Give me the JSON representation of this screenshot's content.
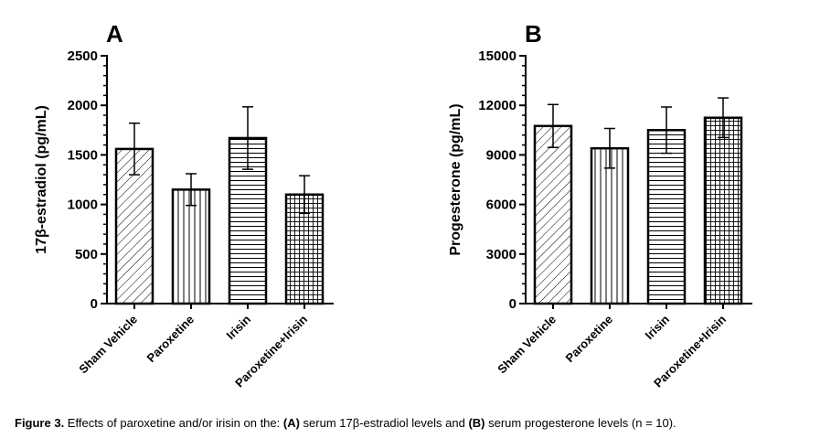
{
  "caption": {
    "figure_label": "Figure 3.",
    "text_1": " Effects of paroxetine and/or irisin on the: ",
    "label_a": "(A)",
    "text_2": " serum 17β-estradiol levels and ",
    "label_b": "(B)",
    "text_3": " serum progesterone levels (n = 10)."
  },
  "chart_data": [
    {
      "type": "bar",
      "panel": "A",
      "title": "",
      "xlabel": "",
      "ylabel": "17β-estradiol (pg/mL)",
      "categories": [
        "Sham Vehicle",
        "Paroxetine",
        "Irisin",
        "Paroxetine+Irisin"
      ],
      "values": [
        1560,
        1150,
        1670,
        1100
      ],
      "errors": [
        260,
        160,
        315,
        190
      ],
      "patterns": [
        "diagonal",
        "vertical",
        "horizontal",
        "grid"
      ],
      "ylim": [
        0,
        2500
      ],
      "yticks": [
        0,
        500,
        1000,
        1500,
        2000,
        2500
      ],
      "minor_per_major": 5,
      "grid": false,
      "legend": "none"
    },
    {
      "type": "bar",
      "panel": "B",
      "title": "",
      "xlabel": "",
      "ylabel": "Progesterone (pg/mL)",
      "categories": [
        "Sham Vehicle",
        "Paroxetine",
        "Irisin",
        "Paroxetine+Irisin"
      ],
      "values": [
        10750,
        9400,
        10500,
        11250
      ],
      "errors": [
        1300,
        1200,
        1400,
        1200
      ],
      "patterns": [
        "diagonal",
        "vertical",
        "horizontal",
        "grid"
      ],
      "ylim": [
        0,
        15000
      ],
      "yticks": [
        0,
        3000,
        6000,
        9000,
        12000,
        15000
      ],
      "minor_per_major": 5,
      "grid": false,
      "legend": "none"
    }
  ]
}
